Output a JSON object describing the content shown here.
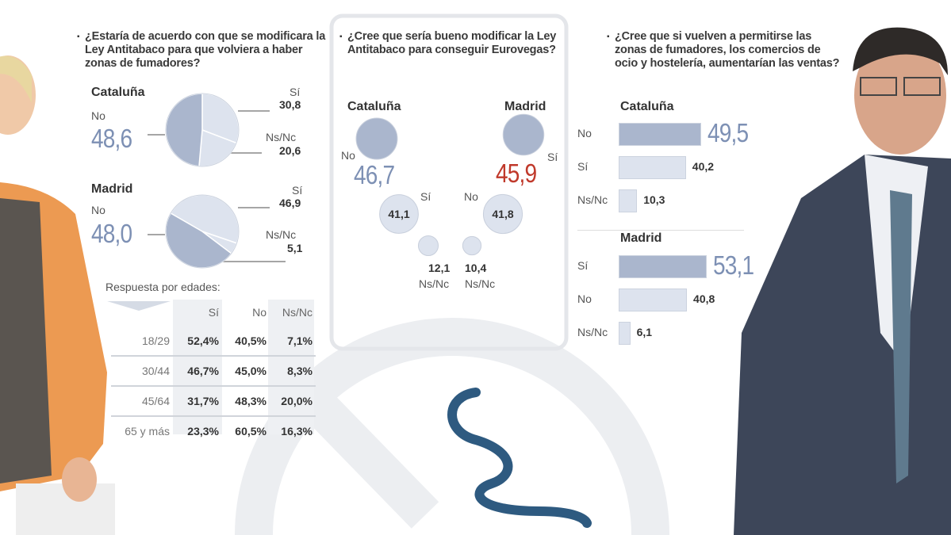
{
  "colors": {
    "dark": "#aab6cd",
    "light": "#dde3ee",
    "accent_blue": "#7d90b4",
    "accent_red": "#c0392b",
    "navy": "#2e5a80"
  },
  "q1": {
    "question": "¿Estaría de acuerdo con que se modificara la Ley Antitabaco para que volviera a haber zonas de fumadores?",
    "cataluna": {
      "region": "Cataluña",
      "no_label": "No",
      "no": "48,6",
      "si_label": "Sí",
      "si": "30,8",
      "ns_label": "Ns/Nc",
      "ns": "20,6"
    },
    "madrid": {
      "region": "Madrid",
      "no_label": "No",
      "no": "48,0",
      "si_label": "Sí",
      "si": "46,9",
      "ns_label": "Ns/Nc",
      "ns": "5,1"
    },
    "ages": {
      "title": "Respuesta por edades:",
      "headers": [
        "Sí",
        "No",
        "Ns/Nc"
      ],
      "rows": [
        [
          "18/29",
          "52,4%",
          "40,5%",
          "7,1%"
        ],
        [
          "30/44",
          "46,7%",
          "45,0%",
          "8,3%"
        ],
        [
          "45/64",
          "31,7%",
          "48,3%",
          "20,0%"
        ],
        [
          "65 y más",
          "23,3%",
          "60,5%",
          "16,3%"
        ]
      ]
    }
  },
  "q2": {
    "question": "¿Cree que sería bueno modificar la Ley Antitabaco para conseguir Eurovegas?",
    "cataluna": {
      "region": "Cataluña",
      "no_label": "No",
      "no": "46,7",
      "si_label": "Sí",
      "si": "41,1",
      "ns_label": "Ns/Nc",
      "ns": "12,1"
    },
    "madrid": {
      "region": "Madrid",
      "si_label": "Sí",
      "si": "45,9",
      "no_label": "No",
      "no": "41,8",
      "ns_label": "Ns/Nc",
      "ns": "10,4"
    }
  },
  "q3": {
    "question": "¿Cree que si vuelven a permitirse las zonas de fumadores, los comercios de ocio y hostelería, aumentarían las ventas?",
    "cataluna": {
      "region": "Cataluña",
      "bars": [
        {
          "label": "No",
          "value": "49,5"
        },
        {
          "label": "Sí",
          "value": "40,2"
        },
        {
          "label": "Ns/Nc",
          "value": "10,3"
        }
      ]
    },
    "madrid": {
      "region": "Madrid",
      "bars": [
        {
          "label": "Sí",
          "value": "53,1"
        },
        {
          "label": "No",
          "value": "40,8"
        },
        {
          "label": "Ns/Nc",
          "value": "6,1"
        }
      ]
    }
  },
  "chart_data": [
    {
      "type": "pie",
      "title": "¿Estaría de acuerdo con que se modificara la Ley Antitabaco para que volviera a haber zonas de fumadores?",
      "series": [
        {
          "name": "Cataluña",
          "categories": [
            "No",
            "Sí",
            "Ns/Nc"
          ],
          "values": [
            48.6,
            30.8,
            20.6
          ]
        },
        {
          "name": "Madrid",
          "categories": [
            "No",
            "Sí",
            "Ns/Nc"
          ],
          "values": [
            48.0,
            46.9,
            5.1
          ]
        }
      ]
    },
    {
      "type": "table",
      "title": "Respuesta por edades:",
      "columns": [
        "Sí",
        "No",
        "Ns/Nc"
      ],
      "rows": {
        "18/29": [
          52.4,
          40.5,
          7.1
        ],
        "30/44": [
          46.7,
          45.0,
          8.3
        ],
        "45/64": [
          31.7,
          48.3,
          20.0
        ],
        "65 y más": [
          23.3,
          60.5,
          16.3
        ]
      }
    },
    {
      "type": "scatter",
      "title": "¿Cree que sería bueno modificar la Ley Antitabaco para conseguir Eurovegas?",
      "series": [
        {
          "name": "Cataluña",
          "categories": [
            "No",
            "Sí",
            "Ns/Nc"
          ],
          "values": [
            46.7,
            41.1,
            12.1
          ]
        },
        {
          "name": "Madrid",
          "categories": [
            "Sí",
            "No",
            "Ns/Nc"
          ],
          "values": [
            45.9,
            41.8,
            10.4
          ]
        }
      ]
    },
    {
      "type": "bar",
      "title": "¿Cree que si vuelven a permitirse las zonas de fumadores, los comercios de ocio y hostelería, aumentarían las ventas?",
      "series": [
        {
          "name": "Cataluña",
          "categories": [
            "No",
            "Sí",
            "Ns/Nc"
          ],
          "values": [
            49.5,
            40.2,
            10.3
          ]
        },
        {
          "name": "Madrid",
          "categories": [
            "Sí",
            "No",
            "Ns/Nc"
          ],
          "values": [
            53.1,
            40.8,
            6.1
          ]
        }
      ]
    }
  ]
}
